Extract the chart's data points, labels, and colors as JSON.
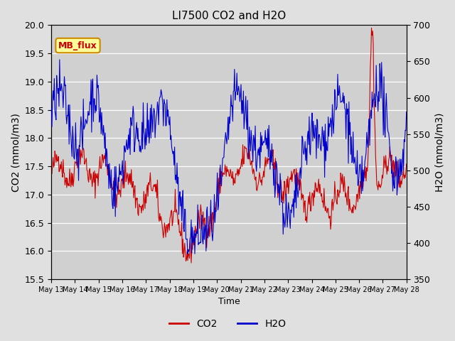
{
  "title": "LI7500 CO2 and H2O",
  "xlabel": "Time",
  "ylabel_left": "CO2 (mmol/m3)",
  "ylabel_right": "H2O (mmol/m3)",
  "co2_ylim": [
    15.5,
    20.0
  ],
  "h2o_ylim": [
    350,
    700
  ],
  "co2_yticks": [
    15.5,
    16.0,
    16.5,
    17.0,
    17.5,
    18.0,
    18.5,
    19.0,
    19.5,
    20.0
  ],
  "h2o_yticks": [
    350,
    400,
    450,
    500,
    550,
    600,
    650,
    700
  ],
  "co2_color": "#cc0000",
  "h2o_color": "#0000cc",
  "bg_color": "#e0e0e0",
  "plot_bg": "#d0d0d0",
  "annotation_text": "MB_flux",
  "annotation_facecolor": "#ffff99",
  "annotation_edgecolor": "#cc8800",
  "annotation_textcolor": "#cc0000",
  "x_tick_labels": [
    "May 13",
    "May 14",
    "May 15",
    "May 16",
    "May 17",
    "May 18",
    "May 19",
    "May 20",
    "May 21",
    "May 22",
    "May 23",
    "May 24",
    "May 25",
    "May 26",
    "May 27",
    "May 28"
  ],
  "n_points": 600,
  "seed": 42
}
